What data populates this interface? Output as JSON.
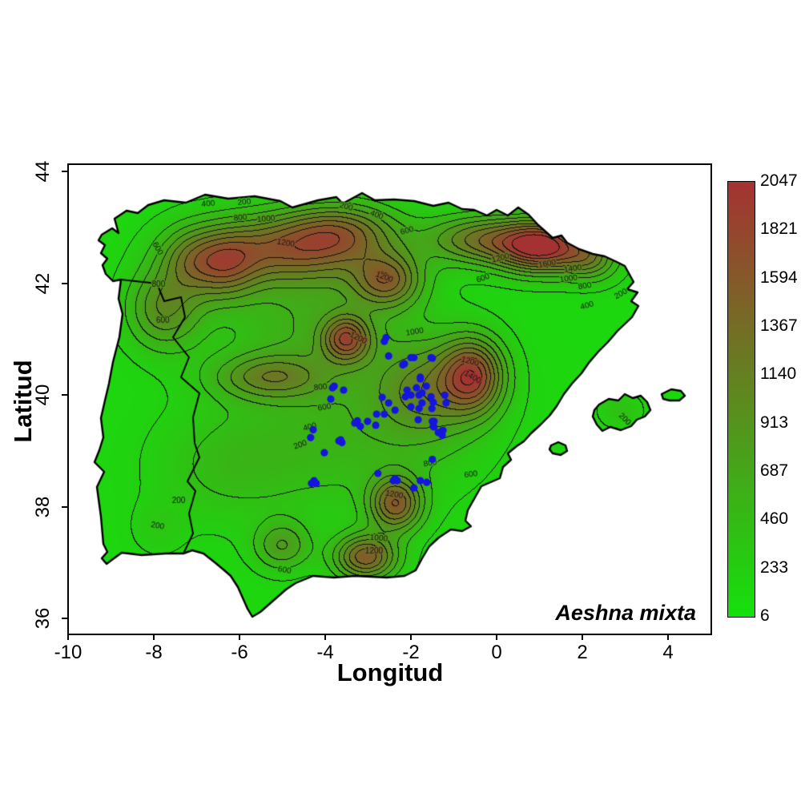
{
  "figure": {
    "species_label": "Aeshna mixta",
    "background_color": "#ffffff"
  },
  "axes": {
    "xlabel": "Longitud",
    "ylabel": "Latitud",
    "x_ticks": [
      -10,
      -8,
      -6,
      -4,
      -2,
      0,
      2,
      4
    ],
    "y_ticks": [
      36,
      38,
      40,
      42,
      44
    ],
    "xlim": [
      -10,
      5.0
    ],
    "ylim": [
      35.72,
      44.13
    ]
  },
  "colorbar": {
    "labels": [
      2047,
      1821,
      1594,
      1367,
      1140,
      913,
      687,
      460,
      233,
      6
    ],
    "min": 6,
    "max": 2047,
    "low_color": "#14e10c",
    "high_color": "#a53232"
  },
  "chart_data": {
    "type": "heatmap",
    "subtype": "contour-elevation-map-with-scatter",
    "region": "Iberian Peninsula",
    "surface_variable": "elevation (m)",
    "surface_range": [
      6,
      2047
    ],
    "contour_interval": 200,
    "point_color": "#1515dd",
    "line_color": "#000000",
    "contour_labels": [
      [
        200,
        -5.89,
        43.45,
        -5
      ],
      [
        400,
        -6.73,
        43.42,
        -5
      ],
      [
        800,
        -5.98,
        43.17,
        -5
      ],
      [
        1000,
        -5.38,
        43.15,
        -5
      ],
      [
        1200,
        -4.92,
        42.72,
        10
      ],
      [
        200,
        -3.51,
        43.37,
        15
      ],
      [
        400,
        -2.8,
        43.22,
        20
      ],
      [
        600,
        -2.09,
        42.94,
        -15
      ],
      [
        1200,
        -2.62,
        42.11,
        20
      ],
      [
        1200,
        0.09,
        42.45,
        -15
      ],
      [
        1600,
        1.18,
        42.35,
        -10
      ],
      [
        1400,
        1.78,
        42.26,
        -8
      ],
      [
        1000,
        1.68,
        42.08,
        -8
      ],
      [
        800,
        2.06,
        41.95,
        -8
      ],
      [
        600,
        -0.32,
        42.09,
        -20
      ],
      [
        400,
        2.11,
        41.6,
        -15
      ],
      [
        200,
        2.9,
        41.81,
        -30
      ],
      [
        1000,
        -1.91,
        41.13,
        -10
      ],
      [
        1200,
        -3.23,
        41.02,
        25
      ],
      [
        1200,
        -0.62,
        40.6,
        15
      ],
      [
        1400,
        -0.56,
        40.32,
        30
      ],
      [
        800,
        -4.11,
        40.14,
        -5
      ],
      [
        600,
        -4.02,
        39.78,
        -10
      ],
      [
        400,
        -4.36,
        39.43,
        -15
      ],
      [
        200,
        -4.58,
        39.11,
        -20
      ],
      [
        800,
        -1.55,
        38.78,
        -10
      ],
      [
        600,
        -0.6,
        38.58,
        -8
      ],
      [
        1200,
        -2.39,
        38.22,
        10
      ],
      [
        1000,
        -2.75,
        37.44,
        5
      ],
      [
        1200,
        -2.86,
        37.21,
        0
      ],
      [
        600,
        -4.95,
        36.87,
        10
      ],
      [
        200,
        -7.42,
        38.11,
        0
      ],
      [
        200,
        -7.91,
        37.66,
        10
      ],
      [
        600,
        -7.91,
        42.62,
        60
      ],
      [
        800,
        -7.89,
        41.98,
        0
      ],
      [
        600,
        -7.79,
        41.33,
        0
      ],
      [
        200,
        2.99,
        39.57,
        45
      ]
    ],
    "occurrences": [
      [
        -2.58,
        41.03
      ],
      [
        -2.62,
        40.96
      ],
      [
        -2.52,
        40.7
      ],
      [
        -1.93,
        40.67
      ],
      [
        -1.5,
        40.66
      ],
      [
        -2.15,
        40.56
      ],
      [
        -1.78,
        40.32
      ],
      [
        -2.19,
        40.54
      ],
      [
        -2.0,
        40.67
      ],
      [
        -1.53,
        40.67
      ],
      [
        -1.78,
        40.29
      ],
      [
        -1.64,
        40.16
      ],
      [
        -1.87,
        40.13
      ],
      [
        -2.09,
        40.09
      ],
      [
        -2.0,
        40.0
      ],
      [
        -2.13,
        39.97
      ],
      [
        -1.81,
        40.0
      ],
      [
        -1.74,
        40.04
      ],
      [
        -1.53,
        39.97
      ],
      [
        -1.48,
        39.87
      ],
      [
        -1.21,
        40.0
      ],
      [
        -1.18,
        39.86
      ],
      [
        -2.0,
        39.79
      ],
      [
        -1.81,
        39.76
      ],
      [
        -1.74,
        39.86
      ],
      [
        -1.51,
        39.76
      ],
      [
        -1.46,
        39.53
      ],
      [
        -1.48,
        39.44
      ],
      [
        -1.27,
        39.36
      ],
      [
        -3.79,
        40.16
      ],
      [
        -3.83,
        40.13
      ],
      [
        -3.57,
        40.09
      ],
      [
        -3.87,
        39.93
      ],
      [
        -2.67,
        39.96
      ],
      [
        -2.62,
        39.66
      ],
      [
        -2.52,
        39.86
      ],
      [
        -2.37,
        39.73
      ],
      [
        -2.8,
        39.66
      ],
      [
        -3.25,
        39.54
      ],
      [
        -3.31,
        39.5
      ],
      [
        -3.18,
        39.44
      ],
      [
        -3.01,
        39.53
      ],
      [
        -2.82,
        39.46
      ],
      [
        -1.83,
        39.56
      ],
      [
        -1.5,
        39.53
      ],
      [
        -1.46,
        39.43
      ],
      [
        -1.25,
        39.37
      ],
      [
        -1.36,
        39.33
      ],
      [
        -4.28,
        39.38
      ],
      [
        -4.34,
        39.24
      ],
      [
        -3.68,
        39.18
      ],
      [
        -3.61,
        39.15
      ],
      [
        -3.64,
        39.2
      ],
      [
        -4.02,
        38.97
      ],
      [
        -4.26,
        38.47
      ],
      [
        -4.32,
        38.42
      ],
      [
        -4.21,
        38.42
      ],
      [
        -2.77,
        38.6
      ],
      [
        -2.41,
        38.47
      ],
      [
        -2.37,
        38.51
      ],
      [
        -2.32,
        38.47
      ],
      [
        -1.93,
        38.34
      ],
      [
        -1.78,
        38.47
      ],
      [
        -1.63,
        38.44
      ],
      [
        -1.5,
        38.85
      ],
      [
        -1.27,
        39.28
      ]
    ]
  }
}
